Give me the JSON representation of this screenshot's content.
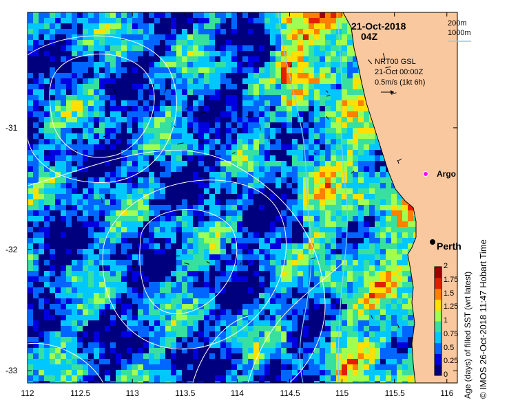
{
  "header": {
    "date": "21-Oct-2018",
    "time": "04Z"
  },
  "bathymetry_legend": {
    "contour1": "200m",
    "contour2": "1000m"
  },
  "current_info": {
    "line1": "NRT00 GSL",
    "line2": "21-Oct 00:00Z",
    "line3": "0.5m/s (1kt 6h)"
  },
  "places": [
    {
      "name": "Argo",
      "lon": 115.75,
      "lat": -31.4,
      "marker": "magenta-circle"
    },
    {
      "name": "Perth",
      "lon": 115.86,
      "lat": -31.95,
      "marker": "black-dot"
    }
  ],
  "colorbar": {
    "title": "Age (days) of filled SST (wrt latest)",
    "ticks": [
      "2",
      "1.75",
      "1.5",
      "1.25",
      "1",
      "0.75",
      "0.5",
      "0.25",
      "0"
    ],
    "colors": [
      "#00007f",
      "#0000e0",
      "#0066ff",
      "#00c8ff",
      "#38e0a0",
      "#a0ff50",
      "#ffe000",
      "#ff8000",
      "#e02000",
      "#a00000"
    ]
  },
  "credit": "© IMOS 26-Oct-2018 11:47 Hobart Time",
  "axes": {
    "x_ticks": [
      "112",
      "112.5",
      "113",
      "113.5",
      "114",
      "114.5",
      "115",
      "115.5",
      "116"
    ],
    "y_ticks": [
      "-31",
      "-32",
      "-33"
    ],
    "lon_range": [
      112,
      116.1
    ],
    "lat_range": [
      -30.05,
      -33.1
    ]
  },
  "colors": {
    "land": "#fac89e",
    "ocean_base": "#10149a",
    "contour": "#ffffff",
    "bathy": "#7fd0ff"
  }
}
